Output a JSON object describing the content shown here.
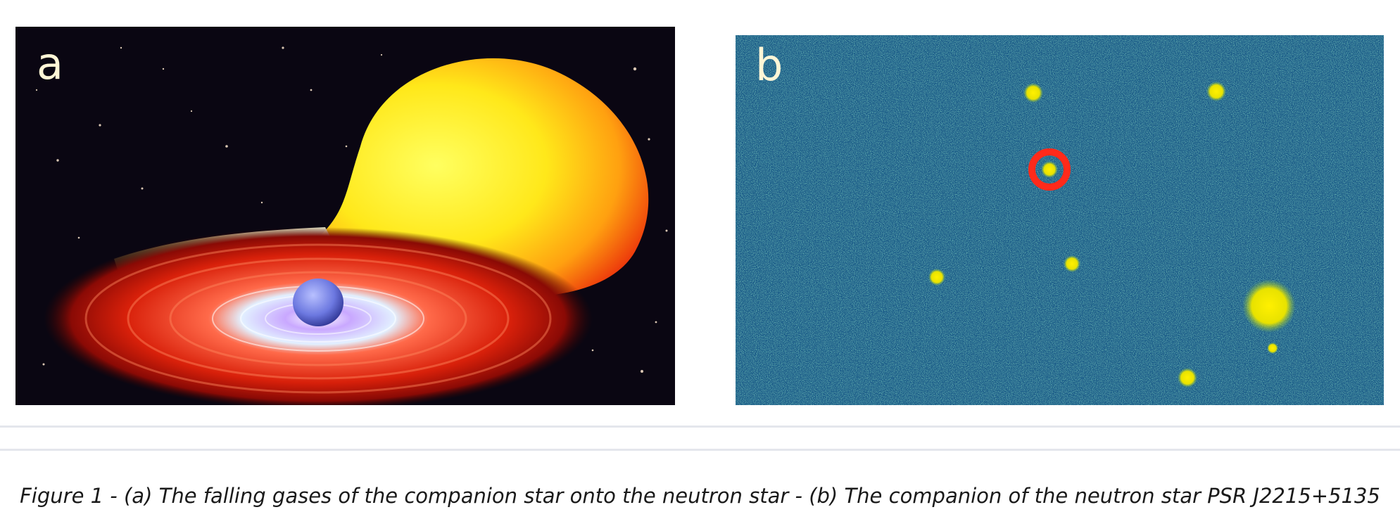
{
  "panels": [
    {
      "label": "a",
      "subject": "neutron-star-accretion-illustration"
    },
    {
      "label": "b",
      "subject": "psr-j2215-5135-field-image"
    }
  ],
  "caption": "Figure 1 - (a) The falling gases of the companion star onto the neutron star - (b) The companion of the neutron star PSR J2215+5135",
  "colors": {
    "space_background": "#0a0612",
    "companion_star": "#ffe21a",
    "accretion_disk": "#d8200a",
    "neutron_star": "#6c78e0",
    "field_background": "#1f5e8a",
    "field_stars": "#fff000",
    "target_ring": "#ff2a1a"
  }
}
